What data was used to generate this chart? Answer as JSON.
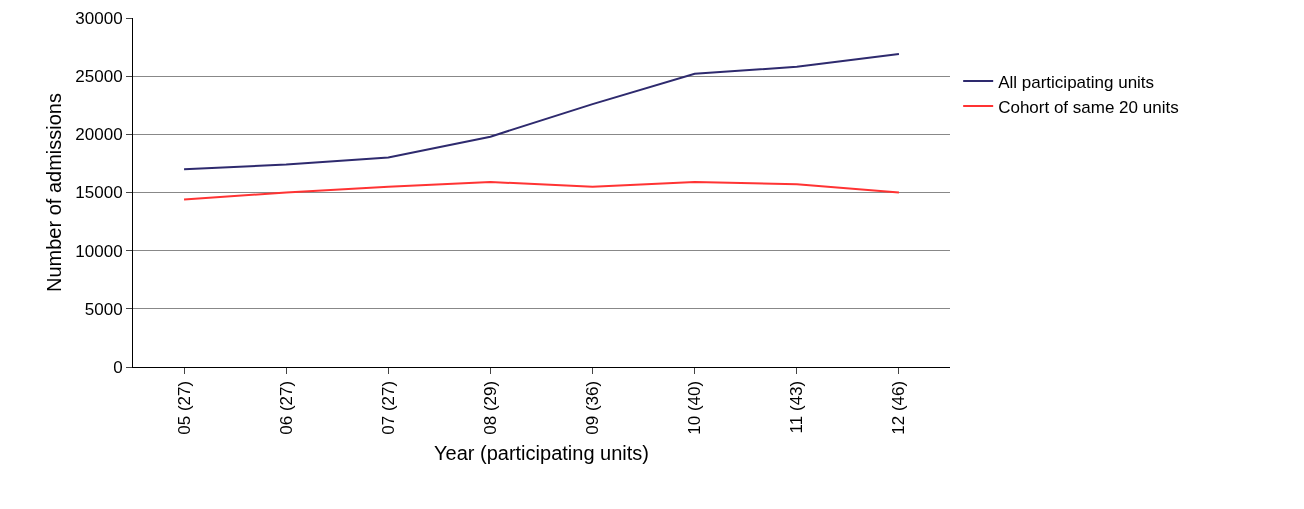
{
  "chart_data": {
    "type": "line",
    "xlabel": "Year (participating units)",
    "ylabel": "Number of admissions",
    "categories": [
      "05 (27)",
      "06 (27)",
      "07 (27)",
      "08 (29)",
      "09 (36)",
      "10 (40)",
      "11 (43)",
      "12 (46)"
    ],
    "series": [
      {
        "name": "All participating units",
        "color": "#2e2a6e",
        "values": [
          17000,
          17400,
          18000,
          19800,
          22600,
          25200,
          25800,
          26900
        ]
      },
      {
        "name": "Cohort of same 20 units",
        "color": "#ff3333",
        "values": [
          14400,
          15000,
          15500,
          15900,
          15500,
          15900,
          15700,
          15000
        ]
      }
    ],
    "ylim": [
      0,
      30000
    ],
    "yticks": [
      0,
      5000,
      10000,
      15000,
      20000,
      25000,
      30000
    ],
    "grid": "y",
    "legend": "right",
    "marker": "none",
    "line_style": "solid"
  }
}
